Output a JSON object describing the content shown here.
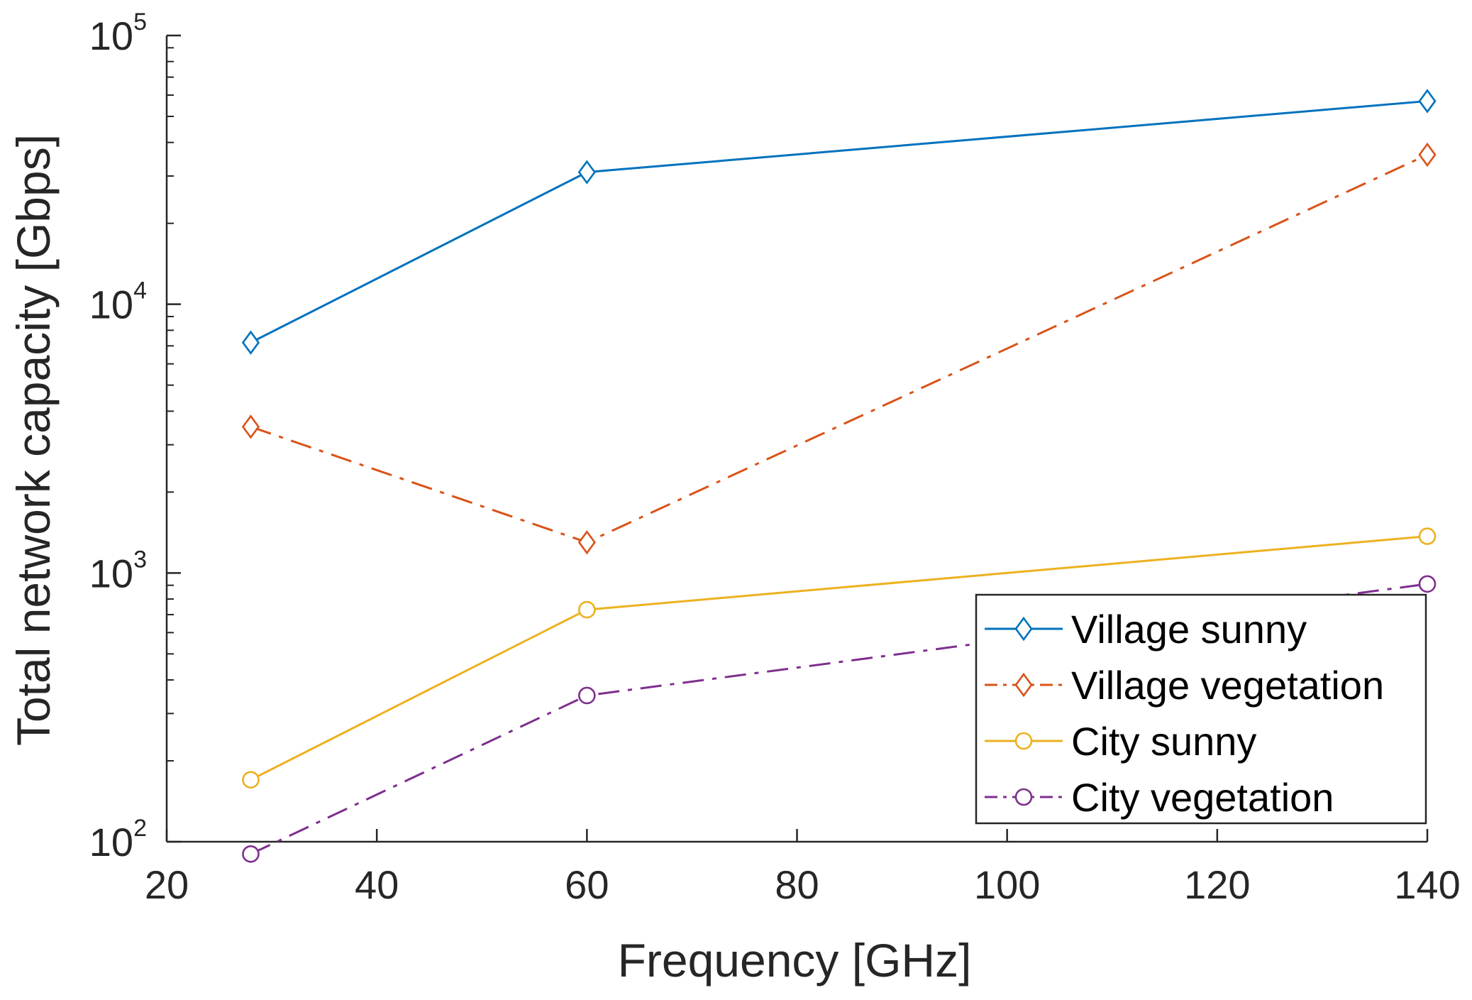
{
  "chart_data": {
    "type": "line",
    "title": "",
    "xlabel": "Frequency [GHz]",
    "ylabel": "Total network capacity [Gbps]",
    "xlim": [
      20,
      140
    ],
    "ylim": [
      100,
      100000
    ],
    "yscale": "log",
    "xticks": [
      "20",
      "40",
      "60",
      "80",
      "100",
      "120",
      "140"
    ],
    "yticks": [
      {
        "base": "10",
        "exp": "2"
      },
      {
        "base": "10",
        "exp": "3"
      },
      {
        "base": "10",
        "exp": "4"
      },
      {
        "base": "10",
        "exp": "5"
      }
    ],
    "x": [
      28,
      60,
      140
    ],
    "series": [
      {
        "name": "Village sunny",
        "values": [
          7200,
          31000,
          57000
        ],
        "color": "#0072BD",
        "dash": "solid",
        "marker": "diamond"
      },
      {
        "name": "Village vegetation",
        "values": [
          3500,
          1300,
          36000
        ],
        "color": "#D95319",
        "dash": "dashdot",
        "marker": "diamond"
      },
      {
        "name": "City sunny",
        "values": [
          170,
          730,
          1370
        ],
        "color": "#EDB120",
        "dash": "solid",
        "marker": "circle"
      },
      {
        "name": "City vegetation",
        "values": [
          90,
          350,
          910
        ],
        "color": "#7E2F8E",
        "dash": "dashdot",
        "marker": "circle"
      }
    ],
    "legend_position": "bottom-right",
    "grid": false
  }
}
